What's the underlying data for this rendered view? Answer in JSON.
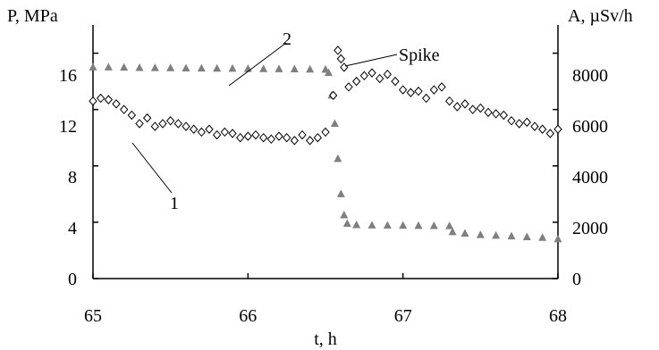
{
  "chart_data": {
    "type": "scatter",
    "title": "",
    "xlabel": "t, h",
    "ylabel_left": "P, MPa",
    "ylabel_right": "A, µSv/h",
    "xlim": [
      65,
      68
    ],
    "ylim_left": [
      0,
      18
    ],
    "ylim_right": [
      0,
      9000
    ],
    "x_ticks": [
      "65",
      "66",
      "67",
      "68"
    ],
    "y_left_ticks": [
      "0",
      "4",
      "8",
      "12",
      "16"
    ],
    "y_right_ticks": [
      "0",
      "2000",
      "4000",
      "6000",
      "8000"
    ],
    "grid": false,
    "legend": "none",
    "annotations": [
      {
        "text": "1",
        "target": "A series (open diamonds)"
      },
      {
        "text": "2",
        "target": "P series (grey triangles)"
      },
      {
        "text": "Spike",
        "target": "A maximum near t = 66.6 h"
      }
    ],
    "colors": {
      "series_P": "#7f7f7f",
      "series_A": "#000000"
    },
    "series": [
      {
        "axis": "left",
        "marker": "triangle",
        "x": [
          65.0,
          65.1,
          65.2,
          65.3,
          65.4,
          65.5,
          65.6,
          65.7,
          65.8,
          65.9,
          66.0,
          66.1,
          66.2,
          66.3,
          66.4,
          66.5,
          66.52,
          66.54,
          66.56,
          66.58,
          66.6,
          66.62,
          66.64,
          66.7,
          66.8,
          66.9,
          67.0,
          67.1,
          67.2,
          67.3,
          67.32,
          67.4,
          67.5,
          67.6,
          67.7,
          67.8,
          67.9,
          68.0
        ],
        "values": [
          15.0,
          15.0,
          14.98,
          14.96,
          14.95,
          14.94,
          14.93,
          14.92,
          14.91,
          14.9,
          14.89,
          14.88,
          14.87,
          14.86,
          14.85,
          14.84,
          14.6,
          13.0,
          11.0,
          8.5,
          6.0,
          4.5,
          3.9,
          3.8,
          3.78,
          3.77,
          3.76,
          3.75,
          3.74,
          3.73,
          3.3,
          3.2,
          3.1,
          3.05,
          3.0,
          2.95,
          2.9,
          2.8
        ]
      },
      {
        "axis": "right",
        "marker": "diamond",
        "x": [
          65.0,
          65.05,
          65.1,
          65.15,
          65.2,
          65.25,
          65.3,
          65.35,
          65.4,
          65.45,
          65.5,
          65.55,
          65.6,
          65.65,
          65.7,
          65.75,
          65.8,
          65.85,
          65.9,
          65.95,
          66.0,
          66.05,
          66.1,
          66.15,
          66.2,
          66.25,
          66.3,
          66.35,
          66.4,
          66.45,
          66.5,
          66.55,
          66.58,
          66.6,
          66.62,
          66.65,
          66.7,
          66.75,
          66.8,
          66.85,
          66.9,
          66.95,
          67.0,
          67.05,
          67.1,
          67.15,
          67.2,
          67.25,
          67.3,
          67.35,
          67.4,
          67.45,
          67.5,
          67.55,
          67.6,
          67.65,
          67.7,
          67.75,
          67.8,
          67.85,
          67.9,
          67.95,
          68.0
        ],
        "values": [
          6300,
          6400,
          6350,
          6200,
          6000,
          5800,
          5500,
          5700,
          5400,
          5500,
          5600,
          5500,
          5400,
          5300,
          5200,
          5300,
          5100,
          5200,
          5150,
          5000,
          5050,
          5100,
          5000,
          4950,
          5050,
          5000,
          4900,
          5100,
          4900,
          5000,
          5200,
          6500,
          8100,
          7800,
          7500,
          6800,
          7000,
          7200,
          7300,
          7100,
          7250,
          7000,
          6700,
          6600,
          6650,
          6400,
          6700,
          6800,
          6300,
          6100,
          6200,
          6000,
          6050,
          5900,
          5850,
          5800,
          5600,
          5500,
          5550,
          5400,
          5300,
          5150,
          5300
        ]
      }
    ]
  }
}
